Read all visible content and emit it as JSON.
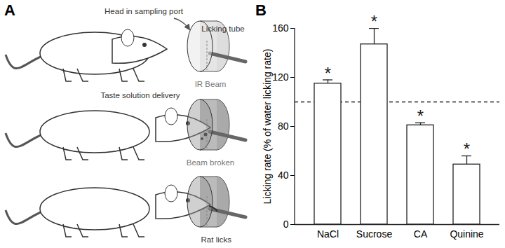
{
  "figure": {
    "panel_labels": [
      "A",
      "B"
    ],
    "diagram": {
      "panels": [
        {
          "labels": [
            "Head in sampling port",
            "Licking tube",
            "IR Beam"
          ]
        },
        {
          "labels": [
            "Taste solution delivery",
            "Beam broken"
          ]
        },
        {
          "labels": [
            "Rat licks"
          ]
        }
      ]
    }
  },
  "chart_data": {
    "type": "bar",
    "categories": [
      "NaCl",
      "Sucrose",
      "CA",
      "Quinine"
    ],
    "values": [
      115,
      147,
      81,
      49
    ],
    "errors": [
      3,
      13,
      2,
      7
    ],
    "color": "#ffffff",
    "ylabel": "Licking rate (% of water licking rate)",
    "ylim": [
      0,
      160
    ],
    "yticks": [
      0,
      40,
      80,
      120,
      160
    ],
    "reference_line": 100,
    "significance": [
      "*",
      "*",
      "*",
      "*"
    ]
  }
}
